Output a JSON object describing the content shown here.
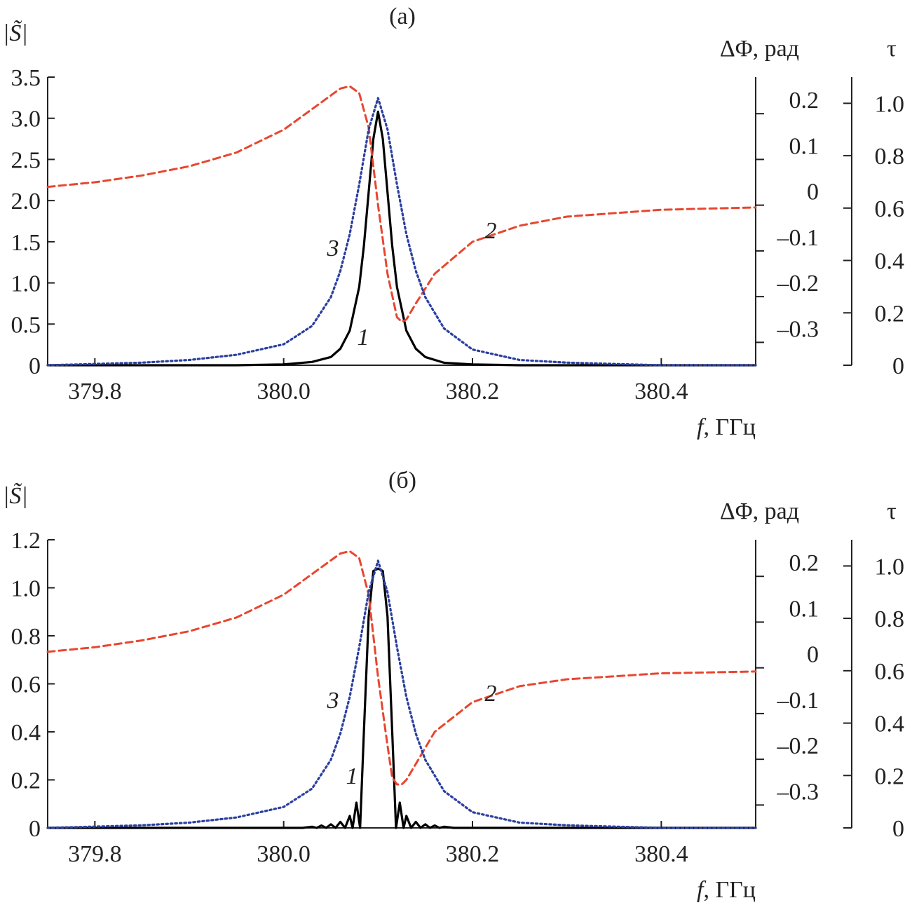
{
  "chart_data": [
    {
      "type": "line",
      "panel_label": "(а)",
      "left_axis_label": "|S̃|",
      "right_axis1_label": "ΔΦ, рад",
      "right_axis2_label": "τ",
      "xlabel_italic": "f",
      "xlabel_rest": ", ГГц",
      "xlim": [
        379.75,
        380.5
      ],
      "x_ticks": [
        "379.8",
        "380.0",
        "380.2",
        "380.4"
      ],
      "x_tick_values": [
        379.8,
        380.0,
        380.2,
        380.4
      ],
      "ylim_left": [
        0,
        3.5
      ],
      "y_ticks_left": [
        "0",
        "0.5",
        "1.0",
        "1.5",
        "2.0",
        "2.5",
        "3.0",
        "3.5"
      ],
      "y_tick_values_left": [
        0,
        0.5,
        1.0,
        1.5,
        2.0,
        2.5,
        3.0,
        3.5
      ],
      "ylim_phase": [
        -0.35,
        0.28
      ],
      "y_ticks_phase": [
        "–0.3",
        "–0.2",
        "–0.1",
        "0",
        "0.1",
        "0.2"
      ],
      "y_tick_values_phase": [
        -0.3,
        -0.2,
        -0.1,
        0,
        0.1,
        0.2
      ],
      "ylim_tau": [
        0,
        1.1
      ],
      "y_ticks_tau": [
        "0",
        "0.2",
        "0.4",
        "0.6",
        "0.8",
        "1.0"
      ],
      "y_tick_values_tau": [
        0,
        0.2,
        0.4,
        0.6,
        0.8,
        1.0
      ],
      "curve_labels": [
        "1",
        "2",
        "3"
      ],
      "series": [
        {
          "label": "1",
          "axis": "left",
          "style": "solid",
          "color": "#000000",
          "x": [
            379.75,
            379.95,
            380.0,
            380.03,
            380.05,
            380.06,
            380.07,
            380.08,
            380.085,
            380.09,
            380.095,
            380.1,
            380.105,
            380.11,
            380.115,
            380.12,
            380.13,
            380.14,
            380.15,
            380.17,
            380.2,
            380.25,
            380.5
          ],
          "y": [
            0,
            0,
            0.01,
            0.04,
            0.1,
            0.2,
            0.42,
            0.95,
            1.45,
            2.1,
            2.75,
            3.08,
            2.75,
            2.1,
            1.45,
            0.95,
            0.42,
            0.2,
            0.1,
            0.03,
            0.01,
            0,
            0
          ]
        },
        {
          "label": "2",
          "axis": "phase",
          "style": "dashed",
          "color": "#e8462e",
          "x": [
            379.75,
            379.8,
            379.85,
            379.9,
            379.95,
            380.0,
            380.03,
            380.05,
            380.06,
            380.07,
            380.08,
            380.09,
            380.1,
            380.11,
            380.12,
            380.125,
            380.13,
            380.14,
            380.16,
            380.2,
            380.25,
            380.3,
            380.4,
            380.5
          ],
          "y": [
            0.04,
            0.05,
            0.065,
            0.085,
            0.115,
            0.165,
            0.21,
            0.24,
            0.255,
            0.26,
            0.245,
            0.17,
            0.0,
            -0.15,
            -0.245,
            -0.255,
            -0.25,
            -0.215,
            -0.15,
            -0.08,
            -0.045,
            -0.025,
            -0.01,
            -0.005
          ]
        },
        {
          "label": "3",
          "axis": "tau",
          "style": "dotted",
          "color": "#2b3fa0",
          "x": [
            379.75,
            379.85,
            379.9,
            379.95,
            380.0,
            380.03,
            380.05,
            380.06,
            380.07,
            380.08,
            380.09,
            380.1,
            380.11,
            380.12,
            380.13,
            380.14,
            380.15,
            380.17,
            380.2,
            380.25,
            380.3,
            380.4,
            380.5
          ],
          "y": [
            0.0,
            0.01,
            0.02,
            0.04,
            0.08,
            0.15,
            0.26,
            0.36,
            0.5,
            0.69,
            0.9,
            1.02,
            0.9,
            0.69,
            0.5,
            0.36,
            0.26,
            0.14,
            0.06,
            0.02,
            0.01,
            0.0,
            0.0
          ]
        }
      ]
    },
    {
      "type": "line",
      "panel_label": "(б)",
      "left_axis_label": "|S̃|",
      "right_axis1_label": "ΔΦ, рад",
      "right_axis2_label": "τ",
      "xlabel_italic": "f",
      "xlabel_rest": ", ГГц",
      "xlim": [
        379.75,
        380.5
      ],
      "x_ticks": [
        "379.8",
        "380.0",
        "380.2",
        "380.4"
      ],
      "x_tick_values": [
        379.8,
        380.0,
        380.2,
        380.4
      ],
      "ylim_left": [
        0,
        1.2
      ],
      "y_ticks_left": [
        "0",
        "0.2",
        "0.4",
        "0.6",
        "0.8",
        "1.0",
        "1.2"
      ],
      "y_tick_values_left": [
        0,
        0.2,
        0.4,
        0.6,
        0.8,
        1.0,
        1.2
      ],
      "ylim_phase": [
        -0.35,
        0.28
      ],
      "y_ticks_phase": [
        "–0.3",
        "–0.2",
        "–0.1",
        "0",
        "0.1",
        "0.2"
      ],
      "y_tick_values_phase": [
        -0.3,
        -0.2,
        -0.1,
        0,
        0.1,
        0.2
      ],
      "ylim_tau": [
        0,
        1.1
      ],
      "y_ticks_tau": [
        "0",
        "0.2",
        "0.4",
        "0.6",
        "0.8",
        "1.0"
      ],
      "y_tick_values_tau": [
        0,
        0.2,
        0.4,
        0.6,
        0.8,
        1.0
      ],
      "curve_labels": [
        "1",
        "2",
        "3"
      ],
      "series": [
        {
          "label": "1",
          "axis": "left",
          "style": "solid",
          "color": "#000000",
          "x": [
            379.75,
            380.02,
            380.03,
            380.035,
            380.04,
            380.045,
            380.05,
            380.055,
            380.06,
            380.065,
            380.07,
            380.073,
            380.077,
            380.081,
            380.085,
            380.09,
            380.095,
            380.1,
            380.105,
            380.11,
            380.115,
            380.119,
            380.123,
            380.127,
            380.13,
            380.135,
            380.14,
            380.145,
            380.15,
            380.155,
            380.16,
            380.165,
            380.17,
            380.18,
            380.5
          ],
          "y": [
            0,
            0,
            0.005,
            0,
            0.01,
            0,
            0.015,
            0,
            0.025,
            0,
            0.05,
            0,
            0.105,
            0,
            0.4,
            0.88,
            1.07,
            1.08,
            1.07,
            0.88,
            0.4,
            0,
            0.105,
            0,
            0.05,
            0,
            0.025,
            0,
            0.015,
            0,
            0.01,
            0,
            0.005,
            0,
            0
          ]
        },
        {
          "label": "2",
          "axis": "phase",
          "style": "dashed",
          "color": "#e8462e",
          "x": [
            379.75,
            379.8,
            379.85,
            379.9,
            379.95,
            380.0,
            380.03,
            380.05,
            380.06,
            380.07,
            380.08,
            380.09,
            380.1,
            380.11,
            380.115,
            380.12,
            380.125,
            380.13,
            380.14,
            380.16,
            380.2,
            380.25,
            380.3,
            380.4,
            380.5
          ],
          "y": [
            0.035,
            0.045,
            0.06,
            0.08,
            0.11,
            0.16,
            0.205,
            0.235,
            0.25,
            0.255,
            0.24,
            0.16,
            -0.02,
            -0.17,
            -0.24,
            -0.255,
            -0.255,
            -0.245,
            -0.21,
            -0.14,
            -0.075,
            -0.04,
            -0.025,
            -0.012,
            -0.008
          ]
        },
        {
          "label": "3",
          "axis": "tau",
          "style": "dotted",
          "color": "#2b3fa0",
          "x": [
            379.75,
            379.85,
            379.9,
            379.95,
            380.0,
            380.03,
            380.05,
            380.06,
            380.07,
            380.08,
            380.09,
            380.1,
            380.11,
            380.12,
            380.13,
            380.14,
            380.15,
            380.17,
            380.2,
            380.25,
            380.3,
            380.4,
            380.5
          ],
          "y": [
            0.0,
            0.01,
            0.02,
            0.04,
            0.08,
            0.15,
            0.26,
            0.36,
            0.5,
            0.69,
            0.9,
            1.02,
            0.9,
            0.69,
            0.5,
            0.36,
            0.26,
            0.14,
            0.06,
            0.02,
            0.01,
            0.0,
            0.0
          ]
        }
      ]
    }
  ]
}
